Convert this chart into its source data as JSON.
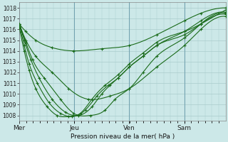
{
  "title": "Pression niveau de la mer( hPa )",
  "ylim": [
    1007.5,
    1018.5
  ],
  "yticks": [
    1008,
    1009,
    1010,
    1011,
    1012,
    1013,
    1014,
    1015,
    1016,
    1017,
    1018
  ],
  "xtick_labels": [
    "Mer",
    "Jeu",
    "Ven",
    "Sam"
  ],
  "xtick_positions": [
    0,
    0.333,
    0.667,
    1.0
  ],
  "xlim": [
    0,
    1.25
  ],
  "bg_color": "#cce8e8",
  "grid_color": "#aacccc",
  "line_color": "#1a6b1a",
  "line_width": 0.8,
  "series": [
    {
      "x": [
        0.0,
        0.04,
        0.1,
        0.2,
        0.33,
        0.5,
        0.667,
        0.833,
        1.0,
        1.1,
        1.25
      ],
      "y": [
        1016.5,
        1015.8,
        1015.0,
        1014.3,
        1014.0,
        1014.2,
        1014.5,
        1015.5,
        1016.8,
        1017.5,
        1018.0
      ]
    },
    {
      "x": [
        0.0,
        0.04,
        0.1,
        0.2,
        0.3,
        0.42,
        0.55,
        0.667,
        0.833,
        1.0,
        1.1,
        1.25
      ],
      "y": [
        1016.5,
        1015.0,
        1013.5,
        1012.0,
        1010.5,
        1009.5,
        1009.8,
        1010.5,
        1012.5,
        1014.5,
        1016.0,
        1017.2
      ]
    },
    {
      "x": [
        0.0,
        0.04,
        0.08,
        0.15,
        0.25,
        0.33,
        0.43,
        0.52,
        0.58,
        0.667,
        0.75,
        0.833,
        1.0,
        1.1,
        1.25
      ],
      "y": [
        1016.5,
        1014.8,
        1013.2,
        1011.5,
        1009.5,
        1008.2,
        1008.0,
        1008.5,
        1009.5,
        1010.5,
        1012.0,
        1013.5,
        1015.2,
        1016.5,
        1017.5
      ]
    },
    {
      "x": [
        0.0,
        0.03,
        0.07,
        0.12,
        0.2,
        0.28,
        0.36,
        0.44,
        0.5,
        0.55,
        0.6,
        0.667,
        0.75,
        0.833,
        1.0,
        1.1,
        1.25
      ],
      "y": [
        1016.5,
        1015.0,
        1013.2,
        1011.5,
        1009.5,
        1008.3,
        1008.0,
        1008.8,
        1010.0,
        1010.8,
        1011.5,
        1012.5,
        1013.5,
        1014.5,
        1015.8,
        1016.8,
        1017.6
      ]
    },
    {
      "x": [
        0.0,
        0.03,
        0.06,
        0.11,
        0.18,
        0.25,
        0.32,
        0.4,
        0.47,
        0.54,
        0.6,
        0.667,
        0.75,
        0.833,
        1.0,
        1.1,
        1.25
      ],
      "y": [
        1016.5,
        1014.5,
        1012.8,
        1011.0,
        1009.2,
        1008.2,
        1007.9,
        1008.5,
        1009.8,
        1010.8,
        1011.5,
        1012.5,
        1013.5,
        1014.5,
        1015.5,
        1016.5,
        1017.4
      ]
    },
    {
      "x": [
        0.0,
        0.03,
        0.06,
        0.1,
        0.17,
        0.23,
        0.3,
        0.37,
        0.44,
        0.52,
        0.6,
        0.667,
        0.75,
        0.833,
        1.0,
        1.1,
        1.25
      ],
      "y": [
        1016.2,
        1014.0,
        1012.2,
        1010.5,
        1008.8,
        1008.0,
        1007.9,
        1008.2,
        1009.5,
        1010.8,
        1011.8,
        1012.8,
        1013.8,
        1014.8,
        1015.8,
        1016.5,
        1017.8
      ]
    }
  ]
}
